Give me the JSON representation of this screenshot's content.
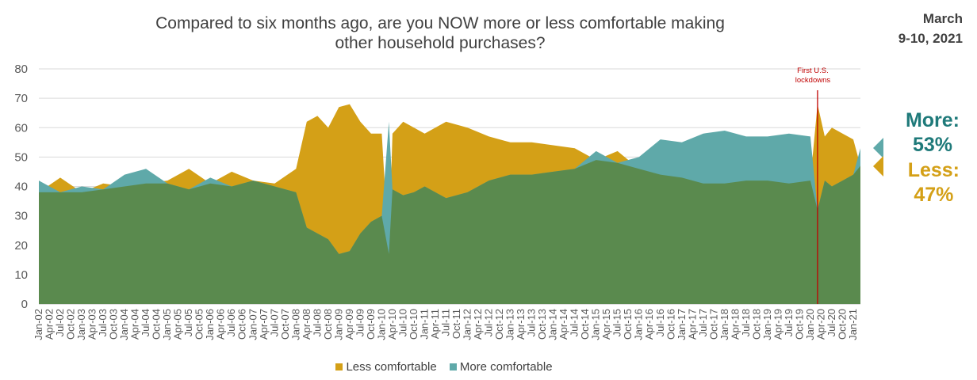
{
  "header": {
    "title_line1": "Compared to six months ago, are you NOW more or less comfortable making",
    "title_line2": "other household purchases?",
    "date_line1": "March",
    "date_line2": "9-10, 2021"
  },
  "callouts": {
    "more_label": "More:",
    "more_value": "53%",
    "less_label": "Less:",
    "less_value": "47%"
  },
  "legend": {
    "less_label": "Less comfortable",
    "more_label": "More comfortable"
  },
  "annotation": {
    "line1": "First U.S.",
    "line2": "lockdowns",
    "x": "Mar-20"
  },
  "colors": {
    "less": "#d4a017",
    "more": "#5fa9a9",
    "overlap": "#5a8a4e",
    "annotation": "#c00000",
    "callout_more": "#1f7a7a"
  },
  "chart_data": {
    "type": "area",
    "ylim": [
      0,
      80
    ],
    "yticks": [
      0,
      10,
      20,
      30,
      40,
      50,
      60,
      70,
      80
    ],
    "x_start": "Jan-02",
    "x_end": "Mar-21",
    "tick_labels": [
      "Jan-02",
      "Apr-02",
      "Jul-02",
      "Oct-02",
      "Jan-03",
      "Apr-03",
      "Jul-03",
      "Oct-03",
      "Jan-04",
      "Apr-04",
      "Jul-04",
      "Oct-04",
      "Jan-05",
      "Apr-05",
      "Jul-05",
      "Oct-05",
      "Jan-06",
      "Apr-06",
      "Jul-06",
      "Oct-06",
      "Jan-07",
      "Apr-07",
      "Jul-07",
      "Oct-07",
      "Jan-08",
      "Apr-08",
      "Jul-08",
      "Oct-08",
      "Jan-09",
      "Apr-09",
      "Jul-09",
      "Oct-09",
      "Jan-10",
      "Apr-10",
      "Jul-10",
      "Oct-10",
      "Jan-11",
      "Apr-11",
      "Jul-11",
      "Oct-11",
      "Jan-12",
      "Apr-12",
      "Jul-12",
      "Oct-12",
      "Jan-13",
      "Apr-13",
      "Jul-13",
      "Oct-13",
      "Jan-14",
      "Apr-14",
      "Jul-14",
      "Oct-14",
      "Jan-15",
      "Apr-15",
      "Jul-15",
      "Oct-15",
      "Jan-16",
      "Apr-16",
      "Jul-16",
      "Oct-16",
      "Jan-17",
      "Apr-17",
      "Jul-17",
      "Oct-17",
      "Jan-18",
      "Apr-18",
      "Jul-18",
      "Oct-18",
      "Jan-19",
      "Apr-19",
      "Jul-19",
      "Oct-19",
      "Jan-20",
      "Apr-20",
      "Jul-20",
      "Oct-20",
      "Jan-21"
    ],
    "series": [
      {
        "name": "Less comfortable",
        "x": [
          "Jan-02",
          "Jul-02",
          "Jan-03",
          "Jul-03",
          "Jan-04",
          "Jul-04",
          "Jan-05",
          "Jul-05",
          "Jan-06",
          "Jul-06",
          "Jan-07",
          "Jul-07",
          "Jan-08",
          "Apr-08",
          "Jul-08",
          "Oct-08",
          "Jan-09",
          "Apr-09",
          "Jul-09",
          "Oct-09",
          "Jan-10",
          "Mar-10",
          "Apr-10",
          "Jul-10",
          "Oct-10",
          "Jan-11",
          "Jul-11",
          "Jan-12",
          "Jul-12",
          "Jan-13",
          "Jul-13",
          "Jan-14",
          "Jul-14",
          "Jan-15",
          "Jul-15",
          "Jan-16",
          "Jul-16",
          "Jan-17",
          "Jul-17",
          "Jan-18",
          "Jul-18",
          "Jan-19",
          "Jul-19",
          "Jan-20",
          "Mar-20",
          "May-20",
          "Jul-20",
          "Oct-20",
          "Jan-21",
          "Mar-21"
        ],
        "values": [
          38,
          43,
          38,
          41,
          40,
          41,
          42,
          46,
          41,
          45,
          42,
          41,
          46,
          62,
          64,
          60,
          67,
          68,
          62,
          58,
          58,
          17,
          58,
          62,
          60,
          58,
          62,
          60,
          57,
          55,
          55,
          54,
          53,
          49,
          52,
          46,
          44,
          43,
          41,
          41,
          42,
          42,
          41,
          42,
          68,
          57,
          60,
          58,
          56,
          47
        ]
      },
      {
        "name": "More comfortable",
        "x": [
          "Jan-02",
          "Jul-02",
          "Jan-03",
          "Jul-03",
          "Jan-04",
          "Jul-04",
          "Jan-05",
          "Jul-05",
          "Jan-06",
          "Jul-06",
          "Jan-07",
          "Jul-07",
          "Jan-08",
          "Apr-08",
          "Jul-08",
          "Oct-08",
          "Jan-09",
          "Apr-09",
          "Jul-09",
          "Oct-09",
          "Jan-10",
          "Mar-10",
          "Apr-10",
          "Jul-10",
          "Oct-10",
          "Jan-11",
          "Jul-11",
          "Jan-12",
          "Jul-12",
          "Jan-13",
          "Jul-13",
          "Jan-14",
          "Jul-14",
          "Jan-15",
          "Jul-15",
          "Jan-16",
          "Jul-16",
          "Jan-17",
          "Jul-17",
          "Jan-18",
          "Jul-18",
          "Jan-19",
          "Jul-19",
          "Jan-20",
          "Mar-20",
          "May-20",
          "Jul-20",
          "Oct-20",
          "Jan-21",
          "Mar-21"
        ],
        "values": [
          42,
          38,
          40,
          39,
          44,
          46,
          41,
          39,
          43,
          40,
          42,
          40,
          38,
          26,
          24,
          22,
          17,
          18,
          24,
          28,
          30,
          62,
          39,
          37,
          38,
          40,
          36,
          38,
          42,
          44,
          44,
          45,
          46,
          52,
          48,
          50,
          56,
          55,
          58,
          59,
          57,
          57,
          58,
          57,
          32,
          42,
          40,
          42,
          44,
          53
        ]
      }
    ]
  }
}
